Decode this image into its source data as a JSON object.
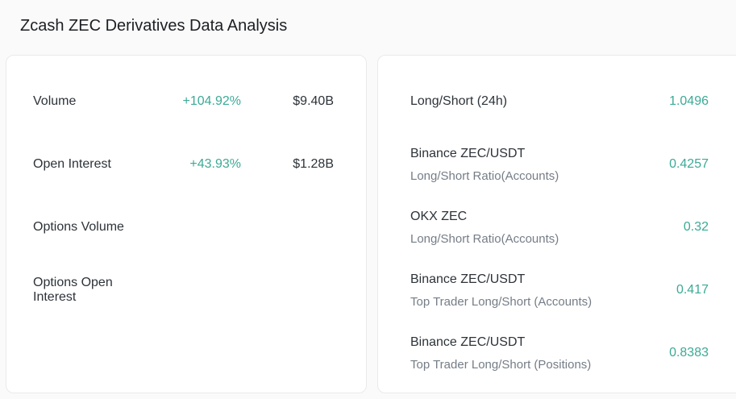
{
  "page": {
    "title": "Zcash ZEC Derivatives Data Analysis"
  },
  "colors": {
    "accent_teal": "#3caa96",
    "card_background": "#ffffff",
    "card_border": "#e9eaeb",
    "page_background": "#fafafa",
    "text_primary": "#2d3339",
    "text_secondary": "#757d87"
  },
  "left_card": {
    "rows": [
      {
        "label": "Volume",
        "change": "+104.92%",
        "value": "$9.40B"
      },
      {
        "label": "Open Interest",
        "change": "+43.93%",
        "value": "$1.28B"
      },
      {
        "label": "Options Volume",
        "change": "",
        "value": ""
      },
      {
        "label": "Options Open Interest",
        "change": "",
        "value": ""
      }
    ]
  },
  "right_card": {
    "rows": [
      {
        "label": "Long/Short (24h)",
        "sublabel": "",
        "value": "1.0496"
      },
      {
        "label": "Binance ZEC/USDT",
        "sublabel": "Long/Short Ratio(Accounts)",
        "value": "0.4257"
      },
      {
        "label": "OKX ZEC",
        "sublabel": "Long/Short Ratio(Accounts)",
        "value": "0.32"
      },
      {
        "label": "Binance ZEC/USDT",
        "sublabel": "Top Trader Long/Short (Accounts)",
        "value": "0.417"
      },
      {
        "label": "Binance ZEC/USDT",
        "sublabel": "Top Trader Long/Short (Positions)",
        "value": "0.8383"
      }
    ]
  }
}
